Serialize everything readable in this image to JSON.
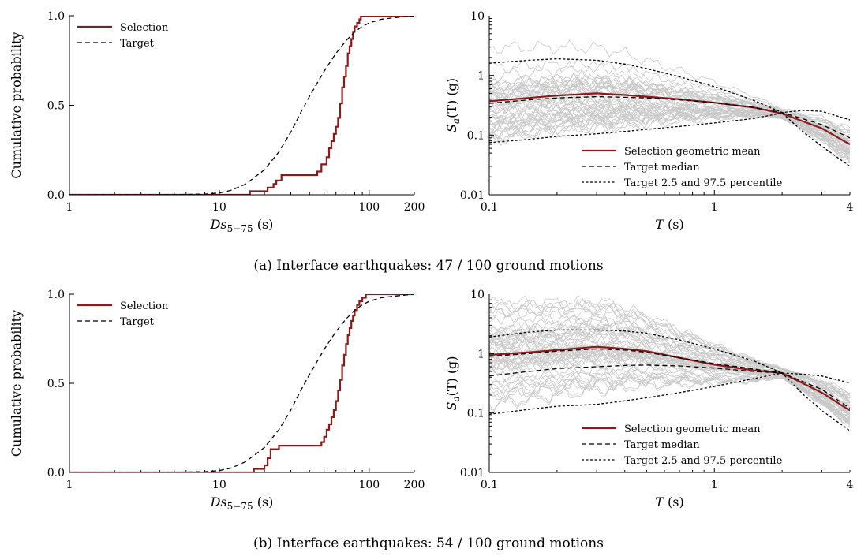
{
  "captions": [
    "(a) Interface earthquakes: 47 / 100 ground motions",
    "(b) Interface earthquakes: 54 / 100 ground motions"
  ],
  "colors": {
    "selection": "#8b1a1a",
    "target": "#000000",
    "records": "#c8c8c8"
  },
  "chart_data": [
    {
      "type": "line",
      "panel": "a-left",
      "xscale": "log",
      "xlim": [
        1,
        200
      ],
      "ylim": [
        0,
        1
      ],
      "xlabel": "Ds",
      "xlabel_sub": "5−75",
      "xlabel_unit": " (s)",
      "ylabel": "Cumulative probability",
      "xticks": [
        1,
        10,
        100,
        200
      ],
      "xtick_labels": [
        "1",
        "10",
        "100",
        "200"
      ],
      "yticks": [
        0,
        0.5,
        1
      ],
      "ytick_labels": [
        "0.0",
        "0.5",
        "1.0"
      ],
      "legend": "top-left",
      "series": [
        {
          "name": "Selection",
          "style": "step",
          "x": [
            1,
            16,
            16,
            20,
            21,
            22,
            23,
            24,
            26,
            30,
            45,
            48,
            52,
            54,
            56,
            58,
            60,
            62,
            64,
            66,
            68,
            70,
            72,
            74,
            76,
            78,
            80,
            83,
            86,
            88,
            92,
            95,
            200
          ],
          "y": [
            0,
            0,
            0.02,
            0.02,
            0.04,
            0.04,
            0.06,
            0.08,
            0.11,
            0.11,
            0.13,
            0.17,
            0.21,
            0.26,
            0.3,
            0.34,
            0.38,
            0.43,
            0.51,
            0.6,
            0.66,
            0.72,
            0.79,
            0.83,
            0.87,
            0.91,
            0.94,
            0.96,
            0.98,
            1.0,
            1.0,
            1.0,
            1.0
          ]
        },
        {
          "name": "Target",
          "style": "dashed",
          "x": [
            1,
            5,
            8,
            10,
            12,
            15,
            20,
            25,
            30,
            35,
            40,
            50,
            60,
            70,
            80,
            90,
            100,
            120,
            150,
            200
          ],
          "y": [
            0,
            0.001,
            0.004,
            0.01,
            0.025,
            0.06,
            0.14,
            0.24,
            0.35,
            0.46,
            0.55,
            0.69,
            0.79,
            0.86,
            0.91,
            0.94,
            0.96,
            0.98,
            0.99,
            1.0
          ]
        }
      ]
    },
    {
      "type": "line",
      "panel": "a-right",
      "xscale": "log",
      "yscale": "log",
      "xlim": [
        0.1,
        4
      ],
      "ylim": [
        0.01,
        10
      ],
      "xlabel": "T",
      "xlabel_unit": " (s)",
      "ylabel": "S",
      "ylabel_sub": "a",
      "ylabel_rest": "(T) (g)",
      "xticks": [
        0.1,
        1,
        4
      ],
      "xtick_labels": [
        "0.1",
        "1",
        "4"
      ],
      "yticks": [
        0.01,
        0.1,
        1,
        10
      ],
      "ytick_labels": [
        "0.01",
        "0.1",
        "1",
        "10"
      ],
      "legend": "bottom-right",
      "records": {
        "count": 47,
        "seed": 11,
        "anchor_T": 2,
        "anchor_Sa": 0.23
      },
      "series": [
        {
          "name": "Selection geometric mean",
          "style": "solid",
          "x": [
            0.1,
            0.15,
            0.2,
            0.3,
            0.4,
            0.5,
            0.7,
            1,
            1.5,
            2,
            3,
            4
          ],
          "y": [
            0.37,
            0.42,
            0.46,
            0.5,
            0.47,
            0.44,
            0.4,
            0.35,
            0.29,
            0.23,
            0.13,
            0.07
          ]
        },
        {
          "name": "Target median",
          "style": "dashed",
          "x": [
            0.1,
            0.15,
            0.2,
            0.3,
            0.4,
            0.5,
            0.7,
            1,
            1.5,
            2,
            3,
            4
          ],
          "y": [
            0.34,
            0.39,
            0.42,
            0.44,
            0.43,
            0.42,
            0.39,
            0.35,
            0.29,
            0.24,
            0.15,
            0.09
          ]
        },
        {
          "name": "Target 2.5 and 97.5 percentile",
          "style": "dotted",
          "x": [
            0.1,
            0.15,
            0.2,
            0.3,
            0.4,
            0.5,
            0.7,
            1,
            1.5,
            2,
            2.5,
            3,
            4
          ],
          "y": [
            1.6,
            1.8,
            1.9,
            1.8,
            1.55,
            1.3,
            0.95,
            0.65,
            0.38,
            0.24,
            0.26,
            0.25,
            0.18
          ]
        },
        {
          "name": "",
          "style": "dotted",
          "x": [
            0.1,
            0.15,
            0.2,
            0.3,
            0.4,
            0.5,
            0.7,
            1,
            1.5,
            2,
            2.5,
            3,
            4
          ],
          "y": [
            0.075,
            0.085,
            0.095,
            0.105,
            0.115,
            0.125,
            0.14,
            0.16,
            0.19,
            0.235,
            0.11,
            0.065,
            0.03
          ]
        }
      ]
    },
    {
      "type": "line",
      "panel": "b-left",
      "xscale": "log",
      "xlim": [
        1,
        200
      ],
      "ylim": [
        0,
        1
      ],
      "xlabel": "Ds",
      "xlabel_sub": "5−75",
      "xlabel_unit": " (s)",
      "ylabel": "Cumulative probability",
      "xticks": [
        1,
        10,
        100,
        200
      ],
      "xtick_labels": [
        "1",
        "10",
        "100",
        "200"
      ],
      "yticks": [
        0,
        0.5,
        1
      ],
      "ytick_labels": [
        "0.0",
        "0.5",
        "1.0"
      ],
      "legend": "top-left",
      "series": [
        {
          "name": "Selection",
          "style": "step",
          "x": [
            1,
            17,
            17,
            20,
            21,
            22,
            23,
            25,
            45,
            48,
            50,
            52,
            54,
            56,
            58,
            60,
            62,
            64,
            66,
            68,
            70,
            72,
            74,
            76,
            78,
            80,
            83,
            86,
            90,
            95,
            100,
            200
          ],
          "y": [
            0,
            0,
            0.02,
            0.04,
            0.08,
            0.13,
            0.13,
            0.15,
            0.15,
            0.17,
            0.2,
            0.24,
            0.27,
            0.31,
            0.35,
            0.4,
            0.46,
            0.52,
            0.6,
            0.66,
            0.72,
            0.77,
            0.81,
            0.85,
            0.88,
            0.91,
            0.94,
            0.96,
            0.98,
            1.0,
            1.0,
            1.0
          ]
        },
        {
          "name": "Target",
          "style": "dashed",
          "x": [
            1,
            5,
            8,
            10,
            12,
            15,
            20,
            25,
            30,
            35,
            40,
            50,
            60,
            70,
            80,
            90,
            100,
            120,
            150,
            200
          ],
          "y": [
            0,
            0.001,
            0.004,
            0.01,
            0.025,
            0.06,
            0.14,
            0.24,
            0.35,
            0.46,
            0.55,
            0.69,
            0.79,
            0.86,
            0.91,
            0.94,
            0.96,
            0.98,
            0.99,
            1.0
          ]
        }
      ]
    },
    {
      "type": "line",
      "panel": "b-right",
      "xscale": "log",
      "yscale": "log",
      "xlim": [
        0.1,
        4
      ],
      "ylim": [
        0.01,
        10
      ],
      "xlabel": "T",
      "xlabel_unit": " (s)",
      "ylabel": "S",
      "ylabel_sub": "a",
      "ylabel_rest": "(T) (g)",
      "xticks": [
        0.1,
        1,
        4
      ],
      "xtick_labels": [
        "0.1",
        "1",
        "4"
      ],
      "yticks": [
        0.01,
        0.1,
        1,
        10
      ],
      "ytick_labels": [
        "0.01",
        "0.1",
        "1",
        "10"
      ],
      "legend": "bottom-right",
      "records": {
        "count": 54,
        "seed": 23,
        "anchor_T": 2,
        "anchor_Sa": 0.47
      },
      "series": [
        {
          "name": "Selection geometric mean",
          "style": "solid",
          "x": [
            0.1,
            0.15,
            0.2,
            0.3,
            0.4,
            0.5,
            0.7,
            1,
            1.5,
            2,
            3,
            4
          ],
          "y": [
            0.95,
            1.05,
            1.15,
            1.3,
            1.2,
            1.1,
            0.85,
            0.65,
            0.52,
            0.47,
            0.22,
            0.11
          ]
        },
        {
          "name": "Target median",
          "style": "dashed",
          "x": [
            0.1,
            0.15,
            0.2,
            0.3,
            0.4,
            0.5,
            0.7,
            1,
            1.5,
            2,
            3,
            4
          ],
          "y": [
            0.9,
            1.0,
            1.1,
            1.2,
            1.15,
            1.05,
            0.85,
            0.68,
            0.55,
            0.47,
            0.25,
            0.12
          ]
        },
        {
          "name": "Target 2.5 and 97.5 percentile",
          "style": "dotted",
          "x": [
            0.1,
            0.15,
            0.2,
            0.3,
            0.4,
            0.5,
            0.7,
            1,
            1.5,
            2,
            2.5,
            3,
            4
          ],
          "y": [
            1.9,
            2.3,
            2.5,
            2.5,
            2.4,
            2.2,
            1.7,
            1.2,
            0.75,
            0.47,
            0.45,
            0.42,
            0.32
          ]
        },
        {
          "name": "",
          "style": "dotted",
          "x": [
            0.1,
            0.15,
            0.2,
            0.3,
            0.4,
            0.5,
            0.7,
            1,
            1.5,
            2,
            2.5,
            3,
            4
          ],
          "y": [
            0.095,
            0.115,
            0.13,
            0.14,
            0.16,
            0.18,
            0.22,
            0.28,
            0.38,
            0.47,
            0.2,
            0.11,
            0.05
          ]
        },
        {
          "name": "",
          "style": "dashed",
          "x": [
            0.1,
            0.15,
            0.2,
            0.3,
            0.4,
            0.5,
            0.7,
            1,
            1.5,
            2
          ],
          "y": [
            0.42,
            0.5,
            0.56,
            0.6,
            0.63,
            0.64,
            0.62,
            0.57,
            0.5,
            0.47
          ]
        }
      ]
    }
  ]
}
